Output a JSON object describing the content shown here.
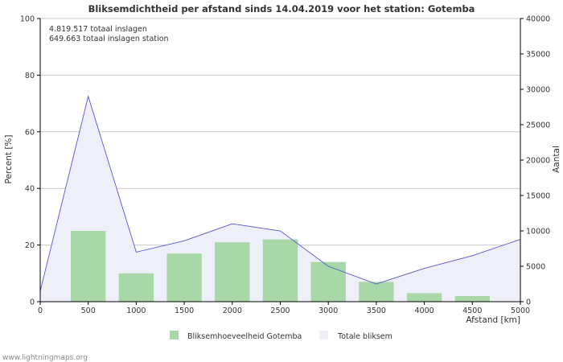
{
  "chart_data": {
    "type": "bar+area",
    "title": "Bliksemdichtheid per afstand sinds 14.04.2019 voor het station: Gotemba",
    "annotations": [
      "4.819.517 totaal inslagen",
      "649.663 totaal inslagen station"
    ],
    "xlabel": "Afstand   [km]",
    "ylabel_left": "Percent   [%]",
    "ylabel_right": "Aantal",
    "xlim": [
      0,
      5000
    ],
    "ylim_left": [
      0,
      100
    ],
    "ylim_right": [
      0,
      40000
    ],
    "x_ticks": [
      0,
      500,
      1000,
      1500,
      2000,
      2500,
      3000,
      3500,
      4000,
      4500,
      5000
    ],
    "left_ticks": [
      0,
      20,
      40,
      60,
      80,
      100
    ],
    "right_ticks": [
      0,
      5000,
      10000,
      15000,
      20000,
      25000,
      30000,
      35000,
      40000
    ],
    "series": [
      {
        "name": "Bliksemhoeveelheid Gotemba",
        "kind": "bar",
        "axis": "left",
        "color": "#a8d8a8",
        "x": [
          0,
          500,
          1000,
          1500,
          2000,
          2500,
          3000,
          3500,
          4000,
          4500,
          5000
        ],
        "values": [
          0,
          25,
          10,
          17,
          21,
          22,
          14,
          7,
          3,
          2,
          0
        ]
      },
      {
        "name": "Totale bliksem",
        "kind": "area",
        "axis": "right",
        "color": "#efeffa",
        "x": [
          0,
          500,
          1000,
          1500,
          2000,
          2500,
          3000,
          3500,
          4000,
          4500,
          5000
        ],
        "values": [
          1500,
          29000,
          7000,
          8600,
          11000,
          10000,
          5000,
          2500,
          4700,
          6500,
          8800
        ]
      }
    ],
    "legend": [
      "Bliksemhoeveelheid Gotemba",
      "Totale bliksem"
    ],
    "legend_position": "bottom",
    "grid": true,
    "watermark": "www.lightningmaps.org"
  }
}
